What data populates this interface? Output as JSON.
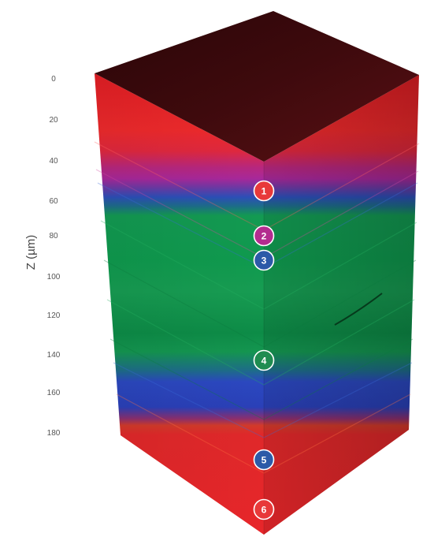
{
  "axis": {
    "label": "Z (µm)",
    "ticks": [
      "0",
      "20",
      "40",
      "60",
      "80",
      "100",
      "120",
      "140",
      "160",
      "180"
    ]
  },
  "layers": [
    {
      "id": "1",
      "color": "#e8393a"
    },
    {
      "id": "2",
      "color": "#b32c8f"
    },
    {
      "id": "3",
      "color": "#2c5aa8"
    },
    {
      "id": "4",
      "color": "#1f8c50"
    },
    {
      "id": "5",
      "color": "#2c5aa8"
    },
    {
      "id": "6",
      "color": "#e8393a"
    }
  ],
  "colors": {
    "top_face": "#3a0a0c",
    "red": "#e8262a",
    "magenta": "#b0308f",
    "blue": "#2a48b8",
    "green": "#139a4e",
    "orange": "#d7462a"
  }
}
